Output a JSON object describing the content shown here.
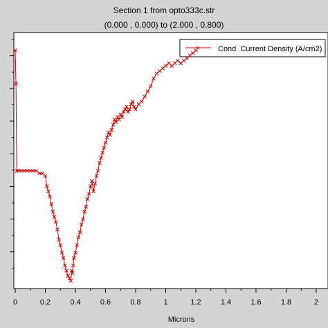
{
  "chart_data": {
    "type": "line",
    "title": "Section 1 from opto333c.str",
    "subtitle": "(0.000 , 0.000) to (2.000 , 0.800)",
    "xlabel": "Microns",
    "ylabel": "",
    "xlim": [
      0,
      1.2
    ],
    "x_ticks": [
      "0",
      "0.2",
      "0.4",
      "0.6",
      "0.8",
      "1",
      "1.2",
      "1.4",
      "1.6",
      "1.8",
      "2"
    ],
    "x_tick_values": [
      0,
      0.2,
      0.4,
      0.6,
      0.8,
      1.0,
      1.2,
      1.4,
      1.6,
      1.8,
      2.0
    ],
    "ylim": [
      0,
      1
    ],
    "grid": false,
    "legend": "top-right",
    "series": [
      {
        "name": "Cond. Current Density (A/cm2)",
        "color": "#cc0000",
        "marker": "x",
        "x": [
          0.0,
          0.005,
          0.01,
          0.02,
          0.04,
          0.06,
          0.08,
          0.1,
          0.12,
          0.14,
          0.16,
          0.18,
          0.2,
          0.21,
          0.22,
          0.23,
          0.24,
          0.25,
          0.26,
          0.27,
          0.28,
          0.29,
          0.3,
          0.31,
          0.32,
          0.33,
          0.34,
          0.35,
          0.36,
          0.37,
          0.375,
          0.38,
          0.385,
          0.39,
          0.4,
          0.41,
          0.42,
          0.43,
          0.44,
          0.45,
          0.46,
          0.47,
          0.48,
          0.49,
          0.5,
          0.51,
          0.52,
          0.53,
          0.54,
          0.55,
          0.56,
          0.57,
          0.58,
          0.59,
          0.6,
          0.61,
          0.62,
          0.63,
          0.64,
          0.65,
          0.66,
          0.67,
          0.68,
          0.69,
          0.7,
          0.71,
          0.72,
          0.73,
          0.74,
          0.75,
          0.76,
          0.77,
          0.78,
          0.79,
          0.8,
          0.82,
          0.84,
          0.86,
          0.88,
          0.9,
          0.92,
          0.94,
          0.96,
          0.98,
          1.0,
          1.02,
          1.04,
          1.06,
          1.08,
          1.1,
          1.12,
          1.14,
          1.16,
          1.18,
          1.2
        ],
        "y": [
          0.93,
          0.8,
          0.46,
          0.46,
          0.46,
          0.46,
          0.46,
          0.46,
          0.46,
          0.46,
          0.45,
          0.45,
          0.44,
          0.4,
          0.38,
          0.36,
          0.33,
          0.3,
          0.28,
          0.26,
          0.23,
          0.19,
          0.17,
          0.14,
          0.12,
          0.09,
          0.07,
          0.05,
          0.04,
          0.03,
          0.07,
          0.06,
          0.09,
          0.12,
          0.14,
          0.17,
          0.2,
          0.22,
          0.25,
          0.27,
          0.3,
          0.32,
          0.35,
          0.37,
          0.4,
          0.42,
          0.38,
          0.41,
          0.44,
          0.46,
          0.49,
          0.51,
          0.53,
          0.55,
          0.57,
          0.59,
          0.61,
          0.6,
          0.62,
          0.64,
          0.66,
          0.65,
          0.67,
          0.66,
          0.68,
          0.67,
          0.69,
          0.7,
          0.71,
          0.69,
          0.7,
          0.72,
          0.73,
          0.71,
          0.7,
          0.72,
          0.73,
          0.75,
          0.77,
          0.79,
          0.82,
          0.84,
          0.85,
          0.86,
          0.87,
          0.88,
          0.87,
          0.88,
          0.89,
          0.88,
          0.89,
          0.9,
          0.91,
          0.92,
          0.93
        ]
      }
    ]
  }
}
